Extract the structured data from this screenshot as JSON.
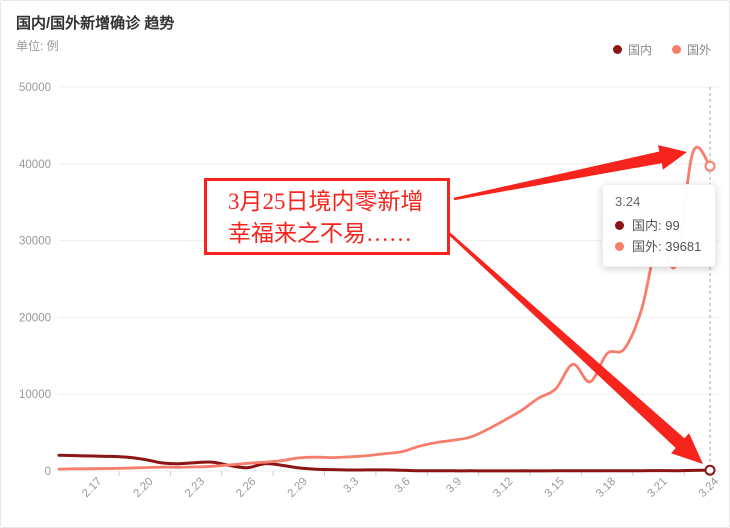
{
  "header": {
    "title": "国内/国外新增确诊 趋势",
    "subtitle": "单位: 例"
  },
  "legend": {
    "items": [
      {
        "label": "国内",
        "color": "#8b1414"
      },
      {
        "label": "国外",
        "color": "#f87d6d"
      }
    ]
  },
  "chart_data": {
    "type": "line",
    "x": [
      "2.15",
      "2.16",
      "2.17",
      "2.18",
      "2.19",
      "2.20",
      "2.21",
      "2.22",
      "2.23",
      "2.24",
      "2.25",
      "2.26",
      "2.27",
      "2.28",
      "2.29",
      "3.1",
      "3.2",
      "3.3",
      "3.4",
      "3.5",
      "3.6",
      "3.7",
      "3.8",
      "3.9",
      "3.10",
      "3.11",
      "3.12",
      "3.13",
      "3.14",
      "3.15",
      "3.16",
      "3.17",
      "3.18",
      "3.19",
      "3.20",
      "3.21",
      "3.22",
      "3.23",
      "3.24"
    ],
    "x_label_indices": [
      2,
      5,
      8,
      11,
      14,
      17,
      20,
      23,
      26,
      29,
      32,
      35,
      38
    ],
    "x_labels_shown": [
      "2.17",
      "2.20",
      "2.23",
      "2.26",
      "2.29",
      "3.3",
      "3.6",
      "3.9",
      "3.12",
      "3.15",
      "3.18",
      "3.21",
      "3.24"
    ],
    "series": [
      {
        "name": "国内",
        "color": "#8b1414",
        "line_width": 3,
        "values": [
          2050,
          2000,
          1950,
          1900,
          1800,
          1500,
          1050,
          950,
          1100,
          1150,
          700,
          430,
          950,
          750,
          400,
          240,
          180,
          130,
          140,
          145,
          100,
          45,
          40,
          20,
          25,
          15,
          11,
          20,
          16,
          27,
          29,
          39,
          34,
          39,
          41,
          46,
          39,
          78,
          99
        ]
      },
      {
        "name": "国外",
        "color": "#f87d6d",
        "line_width": 2.8,
        "values": [
          250,
          280,
          300,
          330,
          380,
          440,
          510,
          480,
          530,
          620,
          800,
          1000,
          1150,
          1350,
          1700,
          1800,
          1750,
          1850,
          2000,
          2250,
          2500,
          3200,
          3700,
          4000,
          4400,
          5400,
          6600,
          7900,
          9500,
          10700,
          13900,
          11600,
          15300,
          15900,
          21000,
          30000,
          26800,
          41500,
          39681
        ]
      }
    ],
    "title": "国内/国外新增确诊 趋势",
    "unit": "例",
    "ylim": [
      0,
      50000
    ],
    "yticks": [
      0,
      10000,
      20000,
      30000,
      40000,
      50000
    ],
    "grid": true,
    "legend_position": "top-right",
    "axis_pointer": {
      "x_label": "3.24",
      "style": "dashed"
    },
    "end_markers": true
  },
  "tooltip": {
    "title": "3.24",
    "rows": [
      {
        "text": "国内: 99",
        "color": "#8b1414"
      },
      {
        "text": "国外: 39681",
        "color": "#f87d6d"
      }
    ]
  },
  "annotation": {
    "line1": "3月25日境内零新增",
    "line2": "幸福来之不易……",
    "color": "#f6241c"
  },
  "colors": {
    "domestic_line": "#8b1414",
    "overseas_line": "#f87d6d",
    "annotation_red": "#f6241c",
    "grid_line": "#eeeeee",
    "axis_text": "#999999",
    "axis_pointer": "#a6a6a6"
  }
}
